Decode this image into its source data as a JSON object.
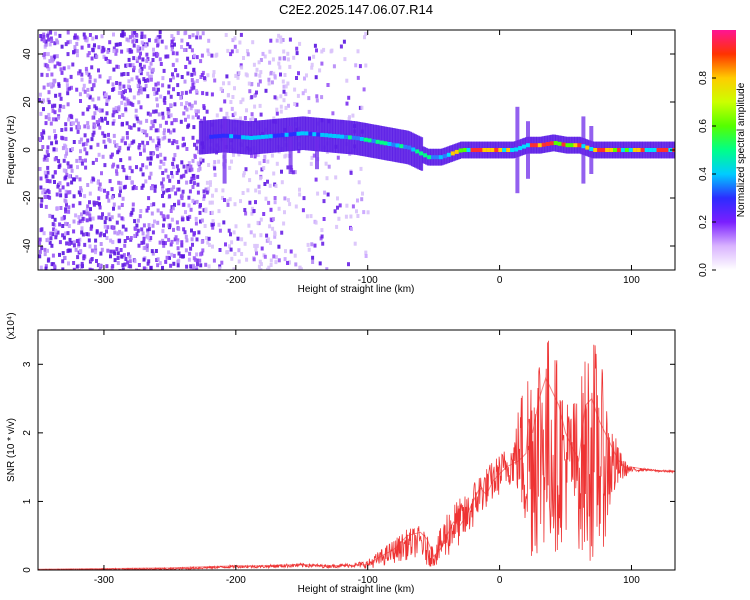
{
  "title": "C2E2.2025.147.06.07.R14",
  "colors": {
    "snr_line": "#ee3333",
    "spectrogram_noise": "#6a22e6",
    "axis": "#000000"
  },
  "chart_data": [
    {
      "type": "heatmap",
      "xlabel": "Height of straight line (km)",
      "ylabel": "Frequency (Hz)",
      "xlim": [
        -350,
        133
      ],
      "ylim": [
        -50,
        50
      ],
      "xticks": [
        -300,
        -200,
        -100,
        0,
        100
      ],
      "yticks": [
        -40,
        -20,
        0,
        20,
        40
      ],
      "xtick_labels": [
        "-300",
        "-200",
        "-100",
        "0",
        "100"
      ],
      "ytick_labels": [
        "-40",
        "-20",
        "0",
        "20",
        "40"
      ],
      "colorbar": {
        "label": "Normalized spectral amplitude",
        "range": [
          0,
          1
        ],
        "ticks": [
          0,
          0.2,
          0.4,
          0.6,
          0.8
        ],
        "tick_labels": [
          "0.0",
          "0.2",
          "0.4",
          "0.6",
          "0.8"
        ],
        "colormap": "rainbow"
      },
      "signal_ridge": {
        "x": [
          -230,
          -210,
          -190,
          -170,
          -150,
          -130,
          -110,
          -90,
          -70,
          -55,
          -45,
          -30,
          -15,
          0,
          10,
          20,
          30,
          40,
          50,
          60,
          70,
          80,
          90,
          100,
          120,
          133
        ],
        "y": [
          5,
          6,
          5,
          6,
          7,
          6,
          5,
          3,
          1,
          -3,
          -3,
          0,
          0,
          0,
          0,
          2,
          2,
          3,
          2,
          2,
          0,
          0,
          0,
          0,
          0,
          0
        ]
      }
    },
    {
      "type": "line",
      "xlabel": "Height of straight line (km)",
      "ylabel": "SNR (10 * v/v)",
      "yscale_label": "(x10⁴)",
      "xlim": [
        -350,
        133
      ],
      "ylim": [
        0,
        3.5
      ],
      "xticks": [
        -300,
        -200,
        -100,
        0,
        100
      ],
      "yticks": [
        0,
        1,
        2,
        3
      ],
      "xtick_labels": [
        "-300",
        "-200",
        "-100",
        "0",
        "100"
      ],
      "ytick_labels": [
        "0",
        "1",
        "2",
        "3"
      ],
      "series": [
        {
          "x": [
            -350,
            -300,
            -250,
            -220,
            -200,
            -180,
            -150,
            -130,
            -110,
            -100,
            -90,
            -80,
            -70,
            -60,
            -55,
            -50,
            -45,
            -40,
            -35,
            -30,
            -25,
            -20,
            -15,
            -10,
            -5,
            0,
            5,
            10,
            15,
            20,
            22,
            25,
            30,
            35,
            40,
            45,
            50,
            55,
            60,
            65,
            70,
            75,
            80,
            85,
            90,
            95,
            100,
            110,
            120,
            133
          ],
          "values": [
            0.01,
            0.02,
            0.03,
            0.05,
            0.06,
            0.06,
            0.08,
            0.06,
            0.07,
            0.08,
            0.2,
            0.3,
            0.5,
            0.55,
            0.45,
            0.2,
            0.3,
            0.5,
            0.7,
            0.65,
            0.8,
            1.0,
            1.2,
            1.1,
            1.3,
            1.4,
            1.5,
            1.55,
            1.6,
            1.7,
            2.2,
            2.0,
            2.5,
            2.8,
            2.6,
            2.4,
            2.0,
            1.8,
            1.6,
            2.4,
            2.5,
            2.2,
            2.0,
            1.8,
            1.6,
            1.5,
            1.5,
            1.47,
            1.45,
            1.44
          ],
          "upper": [
            0.01,
            0.02,
            0.03,
            0.05,
            0.07,
            0.07,
            0.1,
            0.08,
            0.1,
            0.15,
            0.3,
            0.45,
            0.6,
            0.65,
            0.5,
            0.35,
            0.6,
            0.9,
            1.0,
            1.05,
            1.1,
            1.3,
            1.45,
            1.5,
            1.6,
            1.7,
            1.8,
            1.9,
            2.5,
            3.0,
            3.2,
            3.4,
            3.5,
            3.5,
            3.4,
            3.0,
            2.6,
            2.5,
            2.6,
            3.2,
            3.5,
            3.2,
            2.7,
            2.2,
            1.8,
            1.6,
            1.5,
            1.48,
            1.46,
            1.45
          ],
          "lower": [
            0.0,
            0.0,
            0.0,
            0.02,
            0.03,
            0.03,
            0.04,
            0.03,
            0.04,
            0.02,
            0.05,
            0.1,
            0.15,
            0.2,
            0.05,
            0.05,
            0.1,
            0.15,
            0.3,
            0.35,
            0.45,
            0.6,
            0.8,
            0.9,
            1.0,
            1.1,
            1.2,
            1.25,
            1.0,
            0.3,
            0.2,
            0.1,
            0.2,
            0.3,
            0.2,
            0.3,
            0.5,
            0.8,
            0.3,
            0.1,
            0.1,
            0.15,
            0.4,
            0.9,
            1.2,
            1.35,
            1.42,
            1.45,
            1.43,
            1.42
          ]
        }
      ]
    }
  ]
}
